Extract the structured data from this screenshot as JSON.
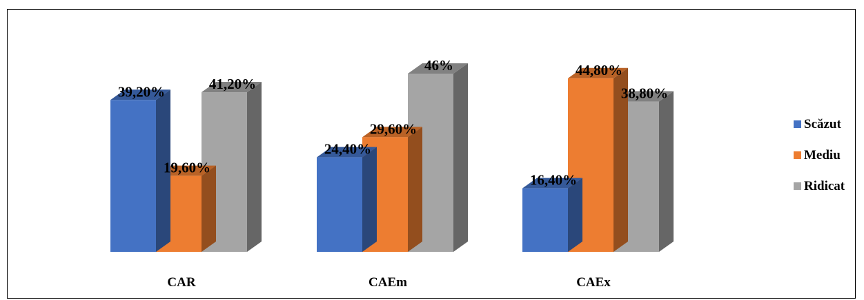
{
  "chart_data": {
    "type": "bar",
    "style": "3d-clustered-column",
    "title": "",
    "xlabel": "",
    "ylabel": "",
    "ylim": [
      0,
      50
    ],
    "grid": false,
    "legend_position": "right",
    "categories": [
      "CAR",
      "CAEm",
      "CAEx"
    ],
    "series": [
      {
        "name": "Scăzut",
        "color": "#4472C4",
        "values": [
          39.2,
          24.4,
          16.4
        ],
        "labels": [
          "39,20%",
          "24,40%",
          "16,40%"
        ]
      },
      {
        "name": "Mediu",
        "color": "#ED7D31",
        "values": [
          19.6,
          29.6,
          44.8
        ],
        "labels": [
          "19,60%",
          "29,60%",
          "44,80%"
        ]
      },
      {
        "name": "Ridicat",
        "color": "#A5A5A5",
        "values": [
          41.2,
          46,
          38.8
        ],
        "labels": [
          "41,20%",
          "46%",
          "38,80%"
        ]
      }
    ]
  }
}
